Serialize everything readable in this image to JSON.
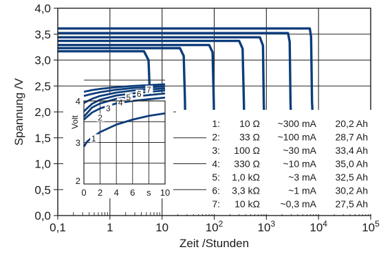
{
  "chart_data": [
    {
      "type": "line",
      "xlabel": "Zeit /Stunden",
      "ylabel": "Spannung /V",
      "x_scale": "log",
      "xlim": [
        0.1,
        100000
      ],
      "ylim": [
        0.0,
        4.0
      ],
      "x_ticks": [
        0.1,
        1,
        10,
        100,
        1000,
        10000,
        100000
      ],
      "x_tick_labels": [
        {
          "base": "0,1",
          "exp": ""
        },
        {
          "base": "1",
          "exp": ""
        },
        {
          "base": "10",
          "exp": ""
        },
        {
          "base": "10",
          "exp": "2"
        },
        {
          "base": "10",
          "exp": "3"
        },
        {
          "base": "10",
          "exp": "4"
        },
        {
          "base": "10",
          "exp": "5"
        }
      ],
      "y_ticks": [
        "0,0",
        "0,5",
        "1,0",
        "1,5",
        "2,0",
        "2,5",
        "3,0",
        "3,5",
        "4,0"
      ],
      "grid": true,
      "line_color": "#0d3d7a",
      "series": [
        {
          "x": [
            0.1,
            6800,
            7200,
            7500,
            8000
          ],
          "y": [
            3.61,
            3.61,
            3.45,
            2.2,
            1.6
          ]
        },
        {
          "x": [
            0.1,
            2600,
            2800,
            2900,
            3000
          ],
          "y": [
            3.52,
            3.52,
            3.35,
            2.2,
            1.6
          ]
        },
        {
          "x": [
            0.1,
            750,
            860,
            890,
            920
          ],
          "y": [
            3.44,
            3.44,
            3.28,
            2.2,
            1.6
          ]
        },
        {
          "x": [
            0.1,
            300,
            350,
            370,
            380
          ],
          "y": [
            3.37,
            3.37,
            3.22,
            2.2,
            1.6
          ]
        },
        {
          "x": [
            0.1,
            80,
            93,
            98,
            100
          ],
          "y": [
            3.29,
            3.29,
            3.15,
            2.2,
            1.6
          ]
        },
        {
          "x": [
            0.1,
            22,
            26,
            27.5,
            28
          ],
          "y": [
            3.23,
            3.23,
            3.08,
            2.2,
            1.6
          ]
        },
        {
          "x": [
            0.1,
            4.5,
            5.5,
            5.9,
            6.0
          ],
          "y": [
            3.17,
            3.17,
            3.0,
            2.2,
            1.6
          ]
        }
      ],
      "legend_rows": [
        {
          "n": "1:",
          "r": "10 Ω",
          "i": "~300 mA",
          "c": "20,2 Ah"
        },
        {
          "n": "2:",
          "r": "33 Ω",
          "i": "~100 mA",
          "c": "28,7 Ah"
        },
        {
          "n": "3:",
          "r": "100 Ω",
          "i": "~30 mA",
          "c": "33,4 Ah"
        },
        {
          "n": "4:",
          "r": "330 Ω",
          "i": "~10 mA",
          "c": "35,0 Ah"
        },
        {
          "n": "5:",
          "r": "1,0 kΩ",
          "i": "~3 mA",
          "c": "32,5 Ah"
        },
        {
          "n": "6:",
          "r": "3,3 kΩ",
          "i": "~1 mA",
          "c": "30,2 Ah"
        },
        {
          "n": "7:",
          "r": "10 kΩ",
          "i": "~0,3 mA",
          "c": "27,5 Ah"
        }
      ]
    },
    {
      "type": "line",
      "xlabel": "s",
      "ylabel": "Volt",
      "xlim": [
        0,
        10
      ],
      "ylim": [
        2,
        4
      ],
      "x_ticks": [
        "0",
        "2",
        "4",
        "6",
        "10"
      ],
      "y_ticks": [
        "2",
        "3",
        "4"
      ],
      "grid": true,
      "series": [
        {
          "label": "1",
          "x": [
            0,
            0.4,
            1,
            2,
            4,
            6,
            8,
            10
          ],
          "y": [
            2.9,
            3.02,
            3.12,
            3.25,
            3.43,
            3.55,
            3.64,
            3.7
          ]
        },
        {
          "label": "2",
          "x": [
            0,
            1,
            2,
            4,
            6,
            8,
            10
          ],
          "y": [
            3.55,
            3.72,
            3.82,
            3.94,
            4.0,
            4.04,
            4.08
          ]
        },
        {
          "label": "3",
          "x": [
            0,
            1,
            2,
            4,
            6,
            8,
            10
          ],
          "y": [
            3.62,
            3.84,
            3.94,
            4.05,
            4.1,
            4.14,
            4.18
          ]
        },
        {
          "label": "4",
          "x": [
            0,
            1,
            2,
            4,
            6,
            8,
            10
          ],
          "y": [
            3.75,
            3.93,
            4.03,
            4.13,
            4.18,
            4.22,
            4.25
          ]
        },
        {
          "label": "5",
          "x": [
            0,
            1,
            2,
            4,
            6,
            8,
            10
          ],
          "y": [
            3.95,
            4.05,
            4.12,
            4.2,
            4.25,
            4.28,
            4.3
          ]
        },
        {
          "label": "6",
          "x": [
            0,
            1,
            2,
            4,
            6,
            8,
            10
          ],
          "y": [
            4.12,
            4.17,
            4.21,
            4.27,
            4.31,
            4.33,
            4.35
          ]
        },
        {
          "label": "7",
          "x": [
            0,
            1,
            2,
            4,
            6,
            8,
            10
          ],
          "y": [
            4.22,
            4.26,
            4.29,
            4.33,
            4.36,
            4.38,
            4.4
          ]
        }
      ]
    }
  ]
}
